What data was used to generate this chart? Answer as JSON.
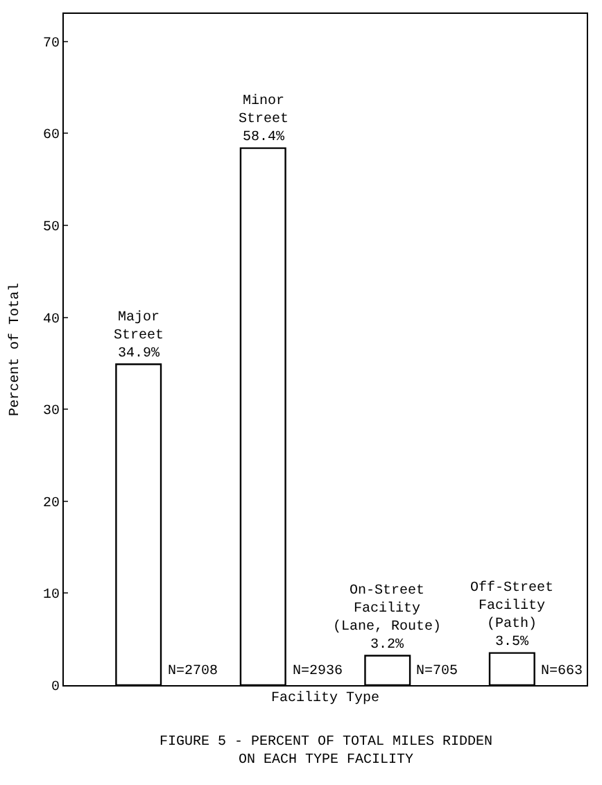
{
  "chart_data": {
    "type": "bar",
    "title": "FIGURE 5 - PERCENT OF TOTAL MILES RIDDEN\nON EACH TYPE FACILITY",
    "xlabel": "Facility Type",
    "ylabel": "Percent of Total",
    "categories": [
      "Major\nStreet",
      "Minor\nStreet",
      "On-Street\nFacility\n(Lane, Route)",
      "Off-Street\nFacility\n(Path)"
    ],
    "values": [
      34.9,
      58.4,
      3.2,
      3.5
    ],
    "value_labels": [
      "34.9%",
      "58.4%",
      "3.2%",
      "3.5%"
    ],
    "color": "#ffffff",
    "annotations": [
      {
        "text": "N=2708",
        "x": "Major\nStreet",
        "y": 0
      },
      {
        "text": "N=2936",
        "x": "Minor\nStreet",
        "y": 0
      },
      {
        "text": "N=705",
        "x": "On-Street\nFacility\n(Lane, Route)",
        "y": 0
      },
      {
        "text": "N=663",
        "x": "Off-Street\nFacility\n(Path)",
        "y": 0
      }
    ],
    "ylim": [
      0,
      73
    ],
    "yticks": [
      0,
      10,
      20,
      30,
      40,
      50,
      60,
      70
    ]
  }
}
